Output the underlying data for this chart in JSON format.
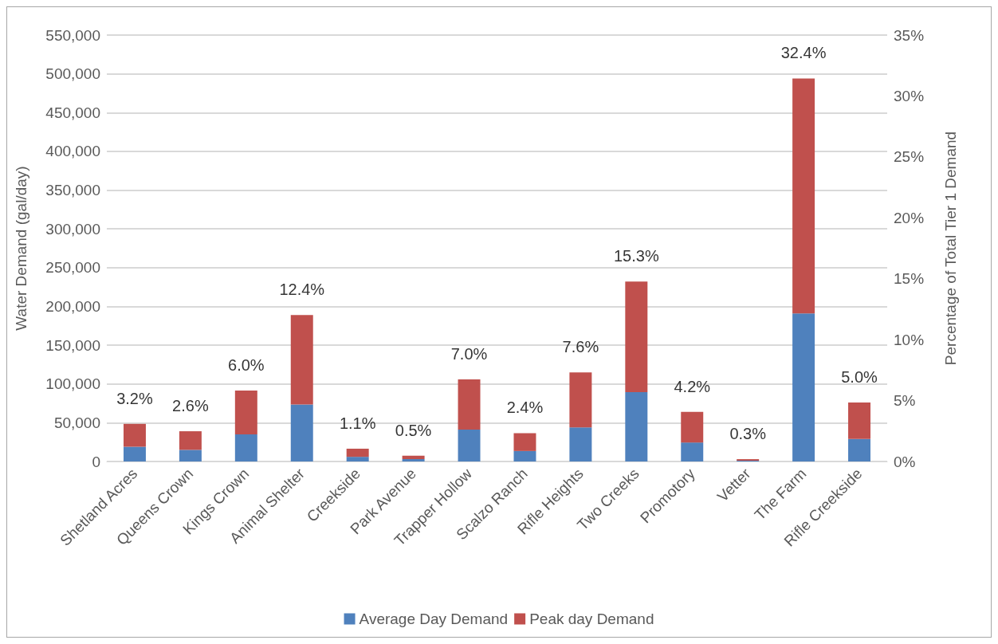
{
  "chart_data": {
    "type": "bar",
    "stacked": true,
    "categories": [
      "Shetland Acres",
      "Queens Crown",
      "Kings Crown",
      "Animal Shelter",
      "Creekside",
      "Park Avenue",
      "Trapper Hollow",
      "Scalzo Ranch",
      "Rifle Heights",
      "Two Creeks",
      "Promotory",
      "Vetter",
      "The Farm",
      "Rifle Creekside"
    ],
    "series": [
      {
        "name": "Average Day Demand",
        "color": "#4f81bd",
        "values": [
          19000,
          15000,
          35000,
          73500,
          6000,
          3000,
          41000,
          13500,
          44000,
          89500,
          24500,
          1000,
          191000,
          29000
        ]
      },
      {
        "name": "Peak day Demand",
        "color": "#c0504d",
        "values": [
          29500,
          24000,
          56500,
          115500,
          10500,
          4500,
          65000,
          23000,
          71000,
          142500,
          39500,
          2000,
          303000,
          47000
        ]
      }
    ],
    "ylabel": "Water Demand (gal/day)",
    "y2label": "Percentage of Total Tier 1 Demand",
    "ylim": [
      0,
      550000
    ],
    "yticks": [
      {
        "value": 0,
        "label": "0"
      },
      {
        "value": 50000,
        "label": "50,000"
      },
      {
        "value": 100000,
        "label": "100,000"
      },
      {
        "value": 150000,
        "label": "150,000"
      },
      {
        "value": 200000,
        "label": "200,000"
      },
      {
        "value": 250000,
        "label": "250,000"
      },
      {
        "value": 300000,
        "label": "300,000"
      },
      {
        "value": 350000,
        "label": "350,000"
      },
      {
        "value": 400000,
        "label": "400,000"
      },
      {
        "value": 450000,
        "label": "450,000"
      },
      {
        "value": 500000,
        "label": "500,000"
      },
      {
        "value": 550000,
        "label": "550,000"
      }
    ],
    "y2lim": [
      0,
      35
    ],
    "y2ticks": [
      {
        "value": 0,
        "label": "0%"
      },
      {
        "value": 5,
        "label": "5%"
      },
      {
        "value": 10,
        "label": "10%"
      },
      {
        "value": 15,
        "label": "15%"
      },
      {
        "value": 20,
        "label": "20%"
      },
      {
        "value": 25,
        "label": "25%"
      },
      {
        "value": 30,
        "label": "30%"
      },
      {
        "value": 35,
        "label": "35%"
      }
    ],
    "annotations": [
      {
        "text": "3.2%",
        "x": "Shetland Acres",
        "y": 48500
      },
      {
        "text": "2.6%",
        "x": "Queens Crown",
        "y": 39000
      },
      {
        "text": "6.0%",
        "x": "Kings Crown",
        "y": 91500
      },
      {
        "text": "12.4%",
        "x": "Animal Shelter",
        "y": 189000
      },
      {
        "text": "1.1%",
        "x": "Creekside",
        "y": 16500
      },
      {
        "text": "0.5%",
        "x": "Park Avenue",
        "y": 7500
      },
      {
        "text": "7.0%",
        "x": "Trapper Hollow",
        "y": 106000
      },
      {
        "text": "2.4%",
        "x": "Scalzo Ranch",
        "y": 36500
      },
      {
        "text": "7.6%",
        "x": "Rifle Heights",
        "y": 115000
      },
      {
        "text": "15.3%",
        "x": "Two Creeks",
        "y": 232000
      },
      {
        "text": "4.2%",
        "x": "Promotory",
        "y": 64000
      },
      {
        "text": "0.3%",
        "x": "Vetter",
        "y": 3000
      },
      {
        "text": "32.4%",
        "x": "The Farm",
        "y": 494000
      },
      {
        "text": "5.0%",
        "x": "Rifle Creekside",
        "y": 76000
      }
    ],
    "grid": "y",
    "legend": "bottom"
  }
}
